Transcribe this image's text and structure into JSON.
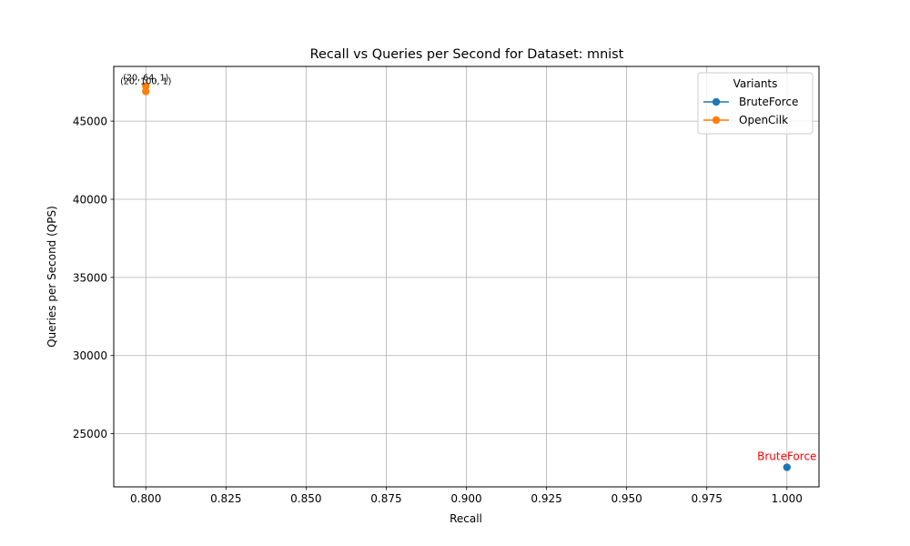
{
  "chart_data": {
    "type": "scatter",
    "title": "Recall vs Queries per Second for Dataset: mnist",
    "xlabel": "Recall",
    "ylabel": "Queries per Second (QPS)",
    "xlim": [
      0.79,
      1.01
    ],
    "ylim": [
      21600,
      48500
    ],
    "xticks": [
      0.8,
      0.825,
      0.85,
      0.875,
      0.9,
      0.925,
      0.95,
      0.975,
      1.0
    ],
    "xtick_labels": [
      "0.800",
      "0.825",
      "0.850",
      "0.875",
      "0.900",
      "0.925",
      "0.950",
      "0.975",
      "1.000"
    ],
    "yticks": [
      25000,
      30000,
      35000,
      40000,
      45000
    ],
    "ytick_labels": [
      "25000",
      "30000",
      "35000",
      "40000",
      "45000"
    ],
    "grid": true,
    "legend": {
      "title": "Variants",
      "position": "top-right"
    },
    "series": [
      {
        "name": "BruteForce",
        "color": "#1f77b4",
        "points": [
          {
            "x": 1.0,
            "y": 22850,
            "label": "BruteForce",
            "label_color": "#ff0000"
          }
        ]
      },
      {
        "name": "OpenCilk",
        "color": "#ff7f0e",
        "points": [
          {
            "x": 0.8,
            "y": 47250,
            "label": "(20, 64, 1)"
          },
          {
            "x": 0.8,
            "y": 46900,
            "label": "(20, 100, 1)"
          }
        ]
      }
    ]
  }
}
